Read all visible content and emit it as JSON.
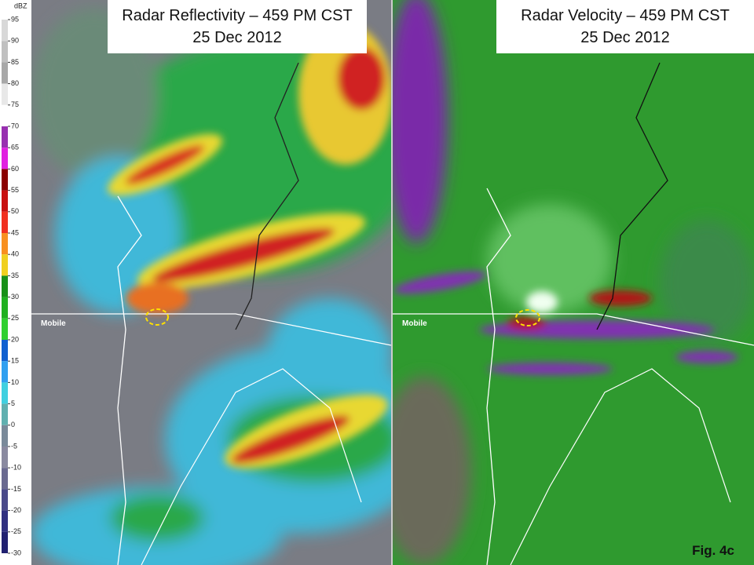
{
  "colorbar": {
    "unit": "dBZ",
    "labels": [
      "95",
      "90",
      "85",
      "80",
      "75",
      "70",
      "65",
      "60",
      "55",
      "50",
      "45",
      "40",
      "35",
      "30",
      "25",
      "20",
      "15",
      "10",
      "5",
      "0",
      "-5",
      "-10",
      "-15",
      "-20",
      "-25",
      "-30"
    ]
  },
  "panels": [
    {
      "title": "Radar Reflectivity – 459 PM CST",
      "date": "25 Dec 2012",
      "city": "Mobile"
    },
    {
      "title": "Radar Velocity – 459 PM CST",
      "date": "25 Dec 2012",
      "city": "Mobile"
    }
  ],
  "figure_label": "Fig. 4c"
}
